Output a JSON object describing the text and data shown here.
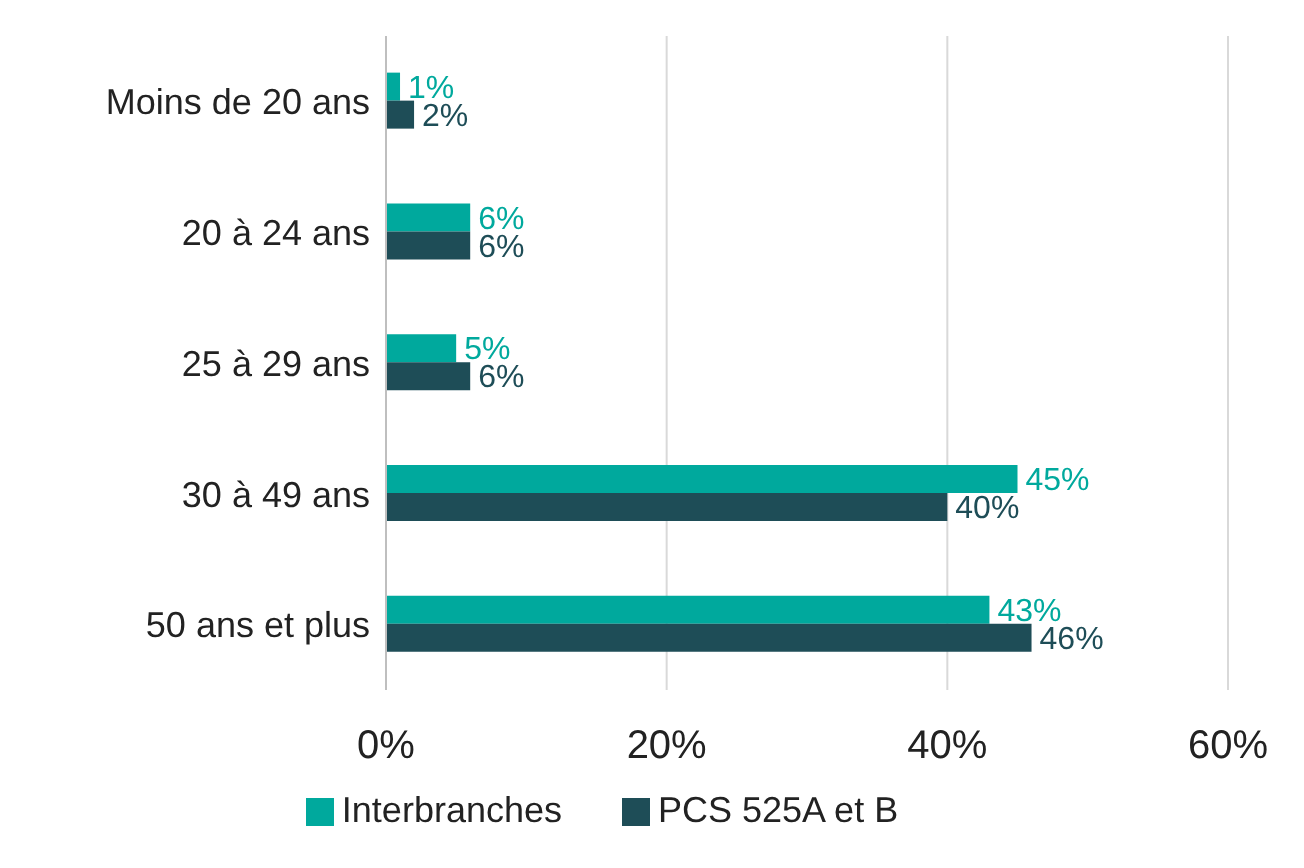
{
  "chart_data": {
    "type": "bar",
    "orientation": "horizontal",
    "categories": [
      "Moins de 20 ans",
      "20 à 24 ans",
      "25 à 29 ans",
      "30 à 49 ans",
      "50 ans et plus"
    ],
    "series": [
      {
        "name": "Interbranches",
        "color": "#00a99d",
        "values": [
          1,
          6,
          5,
          45,
          43
        ],
        "value_labels": [
          "1%",
          "6%",
          "5%",
          "45%",
          "43%"
        ]
      },
      {
        "name": "PCS 525A et B",
        "color": "#1e4d57",
        "values": [
          2,
          6,
          6,
          40,
          46
        ],
        "value_labels": [
          "2%",
          "6%",
          "6%",
          "40%",
          "46%"
        ]
      }
    ],
    "xlim": [
      0,
      60
    ],
    "xticks": [
      {
        "value": 0,
        "label": "0%"
      },
      {
        "value": 20,
        "label": "20%"
      },
      {
        "value": 40,
        "label": "40%"
      },
      {
        "value": 60,
        "label": "60%"
      }
    ],
    "grid": "x",
    "legend": "bottom"
  }
}
